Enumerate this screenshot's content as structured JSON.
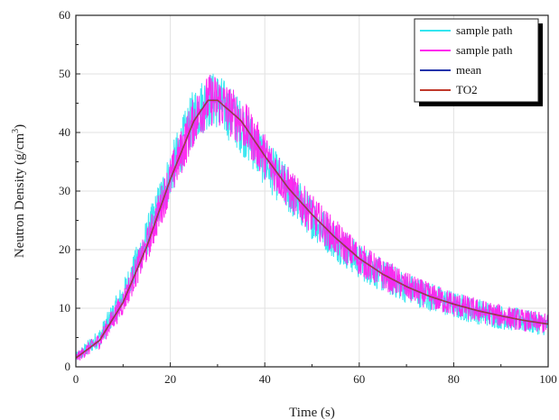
{
  "chart_data": {
    "type": "line",
    "title": "",
    "xlabel": "Time (s)",
    "ylabel": "Neutron Density (g/cm",
    "ylabel_superscript": "3",
    "ylabel_close": ")",
    "xlim": [
      0,
      100
    ],
    "ylim": [
      0,
      60
    ],
    "x_ticks": [
      0,
      20,
      40,
      60,
      80,
      100
    ],
    "y_ticks": [
      0,
      10,
      20,
      30,
      40,
      50,
      60
    ],
    "grid": true,
    "legend_position": "top-right",
    "series": [
      {
        "name": "sample path",
        "color": "#33e6f0",
        "style": "noisy",
        "x": [
          0,
          5,
          10,
          15,
          20,
          25,
          28,
          30,
          35,
          40,
          45,
          50,
          55,
          60,
          65,
          70,
          75,
          80,
          85,
          90,
          95,
          100
        ],
        "y": [
          1.5,
          5,
          12,
          22,
          33,
          43,
          45.5,
          45.5,
          41,
          35,
          30,
          25.5,
          21.5,
          18,
          15.5,
          13.5,
          12,
          10.5,
          9.5,
          8.5,
          7.8,
          7.2
        ],
        "noise": 3.5
      },
      {
        "name": "sample path",
        "color": "#ff22ee",
        "style": "noisy",
        "x": [
          0,
          5,
          10,
          15,
          20,
          25,
          28,
          30,
          35,
          40,
          45,
          50,
          55,
          60,
          65,
          70,
          75,
          80,
          85,
          90,
          95,
          100
        ],
        "y": [
          1.5,
          4.5,
          11,
          20.5,
          32,
          42,
          45.5,
          45.5,
          42,
          36,
          30.5,
          26,
          22,
          18.5,
          15.8,
          13.7,
          12,
          10.7,
          9.6,
          8.7,
          7.9,
          7.3
        ],
        "noise": 3.2
      },
      {
        "name": "mean",
        "color": "#2233aa",
        "style": "smooth",
        "x": [
          0,
          5,
          10,
          15,
          20,
          25,
          28,
          30,
          35,
          40,
          45,
          50,
          55,
          60,
          65,
          70,
          75,
          80,
          85,
          90,
          95,
          100
        ],
        "y": [
          1.5,
          4.5,
          11,
          20.5,
          32,
          42,
          45.5,
          45.5,
          42,
          36,
          30.5,
          26,
          22,
          18.5,
          15.8,
          13.7,
          12,
          10.7,
          9.6,
          8.7,
          7.9,
          7.3
        ]
      },
      {
        "name": "TO2",
        "color": "#c0392b",
        "style": "smooth",
        "x": [
          0,
          5,
          10,
          15,
          20,
          25,
          28,
          30,
          35,
          40,
          45,
          50,
          55,
          60,
          65,
          70,
          75,
          80,
          85,
          90,
          95,
          100
        ],
        "y": [
          1.5,
          4.5,
          11,
          20.5,
          32,
          42,
          45.5,
          45.5,
          42,
          36,
          30.5,
          26,
          22,
          18.5,
          15.8,
          13.7,
          12,
          10.7,
          9.6,
          8.7,
          7.9,
          7.3
        ]
      }
    ]
  }
}
